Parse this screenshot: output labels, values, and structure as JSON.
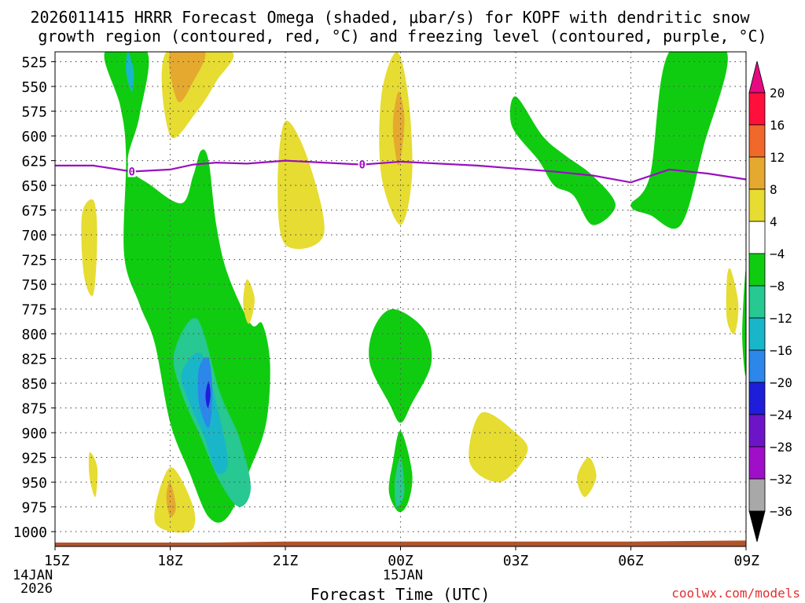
{
  "chart_data": {
    "type": "heatmap",
    "title_line1": "2026011415 HRRR Forecast Omega (shaded, μbar/s) for KOPF with dendritic snow",
    "title_line2": "growth region (contoured, red, °C) and freezing level (contoured, purple, °C)",
    "xlabel": "Forecast Time (UTC)",
    "credit": "coolwx.com/models",
    "x_range_hours": [
      0,
      18
    ],
    "x_ticks": [
      {
        "h": 0,
        "label": "15Z",
        "sub1": "14JAN",
        "sub2": "2026"
      },
      {
        "h": 3,
        "label": "18Z",
        "sub1": "",
        "sub2": ""
      },
      {
        "h": 6,
        "label": "21Z",
        "sub1": "",
        "sub2": ""
      },
      {
        "h": 9,
        "label": "00Z",
        "sub1": "15JAN",
        "sub2": ""
      },
      {
        "h": 12,
        "label": "03Z",
        "sub1": "",
        "sub2": ""
      },
      {
        "h": 15,
        "label": "06Z",
        "sub1": "",
        "sub2": ""
      },
      {
        "h": 18,
        "label": "09Z",
        "sub1": "",
        "sub2": ""
      }
    ],
    "y_axis": "pressure_hPa",
    "y_range": [
      515,
      1015
    ],
    "y_ticks": [
      525,
      550,
      575,
      600,
      625,
      650,
      675,
      700,
      725,
      750,
      775,
      800,
      825,
      850,
      875,
      900,
      925,
      950,
      975,
      1000
    ],
    "colorbar": {
      "labels": [
        "20",
        "16",
        "12",
        "8",
        "4",
        "−4",
        "−8",
        "−12",
        "−16",
        "−20",
        "−24",
        "−28",
        "−32",
        "−36"
      ],
      "bins": [
        {
          "range": [
            16,
            20
          ],
          "color": "#ff0f3c"
        },
        {
          "range": [
            12,
            16
          ],
          "color": "#f0682a"
        },
        {
          "range": [
            8,
            12
          ],
          "color": "#e6a92f"
        },
        {
          "range": [
            4,
            8
          ],
          "color": "#e6dc32"
        },
        {
          "range": [
            -4,
            4
          ],
          "color": "#ffffff"
        },
        {
          "range": [
            -8,
            -4
          ],
          "color": "#10cc10"
        },
        {
          "range": [
            -12,
            -8
          ],
          "color": "#27c891"
        },
        {
          "range": [
            -16,
            -12
          ],
          "color": "#18b6c8"
        },
        {
          "range": [
            -20,
            -16
          ],
          "color": "#2d86ea"
        },
        {
          "range": [
            -24,
            -20
          ],
          "color": "#1e1eda"
        },
        {
          "range": [
            -28,
            -24
          ],
          "color": "#6e14c8"
        },
        {
          "range": [
            -32,
            -28
          ],
          "color": "#a00fc8"
        },
        {
          "range": [
            -36,
            -32
          ],
          "color": "#a8a8a8"
        }
      ],
      "over_color": "#e60a82",
      "under_color": "#000000"
    },
    "freezing_level": {
      "color": "#9a10c0",
      "label": "0",
      "label_points": [
        [
          2.0,
          636
        ],
        [
          8.0,
          629
        ]
      ],
      "points": [
        [
          0,
          630
        ],
        [
          1.0,
          630
        ],
        [
          2.0,
          636
        ],
        [
          3.0,
          634
        ],
        [
          3.6,
          629
        ],
        [
          4.2,
          627
        ],
        [
          5.0,
          628
        ],
        [
          6.0,
          625
        ],
        [
          7.0,
          627
        ],
        [
          8.0,
          629
        ],
        [
          9.0,
          626
        ],
        [
          10.0,
          628
        ],
        [
          11.0,
          630
        ],
        [
          12.0,
          633
        ],
        [
          13.0,
          636
        ],
        [
          14.0,
          640
        ],
        [
          15.0,
          647
        ],
        [
          16.0,
          634
        ],
        [
          17.0,
          638
        ],
        [
          18.0,
          644
        ]
      ]
    },
    "shaded_regions": [
      {
        "bin": "-8..-4",
        "points": [
          [
            1.3,
            515
          ],
          [
            2.4,
            515
          ],
          [
            2.2,
            580
          ],
          [
            1.9,
            628
          ],
          [
            2.5,
            650
          ],
          [
            3.3,
            668
          ],
          [
            3.6,
            640
          ],
          [
            3.8,
            615
          ],
          [
            4.0,
            625
          ],
          [
            4.2,
            690
          ],
          [
            4.5,
            740
          ],
          [
            5.1,
            790
          ],
          [
            5.4,
            790
          ],
          [
            5.6,
            830
          ],
          [
            5.5,
            890
          ],
          [
            5.1,
            935
          ],
          [
            4.5,
            985
          ],
          [
            4.0,
            985
          ],
          [
            3.5,
            940
          ],
          [
            3.0,
            890
          ],
          [
            2.6,
            810
          ],
          [
            2.2,
            770
          ],
          [
            1.8,
            720
          ],
          [
            1.85,
            620
          ],
          [
            1.7,
            570
          ]
        ]
      },
      {
        "bin": "4..8",
        "points": [
          [
            2.9,
            515
          ],
          [
            4.6,
            515
          ],
          [
            4.2,
            545
          ],
          [
            3.7,
            575
          ],
          [
            3.0,
            600
          ]
        ]
      },
      {
        "bin": "8..12",
        "points": [
          [
            3.0,
            515
          ],
          [
            3.9,
            515
          ],
          [
            3.6,
            545
          ],
          [
            3.2,
            565
          ]
        ]
      },
      {
        "bin": "4..8",
        "points": [
          [
            6.0,
            585
          ],
          [
            6.6,
            625
          ],
          [
            7.0,
            700
          ],
          [
            6.0,
            710
          ],
          [
            5.8,
            650
          ]
        ]
      },
      {
        "bin": "4..8",
        "points": [
          [
            1.0,
            665
          ],
          [
            1.1,
            700
          ],
          [
            1.0,
            760
          ],
          [
            0.75,
            740
          ],
          [
            0.7,
            680
          ]
        ]
      },
      {
        "bin": "4..8",
        "points": [
          [
            8.9,
            515
          ],
          [
            9.2,
            560
          ],
          [
            9.3,
            640
          ],
          [
            9.0,
            690
          ],
          [
            8.5,
            640
          ],
          [
            8.5,
            560
          ]
        ]
      },
      {
        "bin": "8..12",
        "points": [
          [
            8.95,
            555
          ],
          [
            9.1,
            585
          ],
          [
            8.95,
            630
          ],
          [
            8.8,
            590
          ]
        ]
      },
      {
        "bin": "4..8",
        "points": [
          [
            5.0,
            745
          ],
          [
            5.2,
            765
          ],
          [
            5.05,
            790
          ],
          [
            4.9,
            770
          ]
        ]
      },
      {
        "bin": "-8..-4",
        "points": [
          [
            12.0,
            560
          ],
          [
            12.7,
            600
          ],
          [
            13.3,
            620
          ],
          [
            14.0,
            640
          ],
          [
            14.6,
            670
          ],
          [
            14.0,
            690
          ],
          [
            13.5,
            660
          ],
          [
            13.0,
            650
          ],
          [
            12.6,
            625
          ],
          [
            11.9,
            590
          ]
        ]
      },
      {
        "bin": "-8..-4",
        "points": [
          [
            16.0,
            515
          ],
          [
            17.5,
            515
          ],
          [
            16.9,
            610
          ],
          [
            16.3,
            690
          ],
          [
            15.5,
            680
          ],
          [
            15.0,
            670
          ],
          [
            15.5,
            640
          ]
        ]
      },
      {
        "bin": "-8..-4",
        "points": [
          [
            8.8,
            775
          ],
          [
            9.6,
            795
          ],
          [
            9.8,
            830
          ],
          [
            9.3,
            870
          ],
          [
            9.0,
            890
          ],
          [
            8.7,
            870
          ],
          [
            8.2,
            830
          ],
          [
            8.3,
            795
          ]
        ]
      },
      {
        "bin": "-8..-4",
        "points": [
          [
            9.0,
            898
          ],
          [
            9.3,
            940
          ],
          [
            9.2,
            970
          ],
          [
            8.95,
            980
          ],
          [
            8.7,
            960
          ],
          [
            8.8,
            930
          ]
        ]
      },
      {
        "bin": "-12..-8",
        "points": [
          [
            9.0,
            925
          ],
          [
            9.1,
            960
          ],
          [
            8.9,
            975
          ],
          [
            8.85,
            950
          ]
        ]
      },
      {
        "bin": "4..8",
        "points": [
          [
            11.1,
            880
          ],
          [
            12.0,
            900
          ],
          [
            12.3,
            920
          ],
          [
            11.6,
            950
          ],
          [
            10.8,
            930
          ]
        ]
      },
      {
        "bin": "4..8",
        "points": [
          [
            13.9,
            925
          ],
          [
            14.1,
            945
          ],
          [
            13.8,
            965
          ],
          [
            13.6,
            945
          ]
        ]
      },
      {
        "bin": "4..8",
        "points": [
          [
            17.6,
            735
          ],
          [
            17.8,
            770
          ],
          [
            17.7,
            800
          ],
          [
            17.5,
            785
          ],
          [
            17.5,
            745
          ]
        ]
      },
      {
        "bin": "-8..-4",
        "points": [
          [
            18.0,
            735
          ],
          [
            18.0,
            840
          ],
          [
            17.9,
            800
          ]
        ]
      },
      {
        "bin": "4..8",
        "points": [
          [
            0.9,
            920
          ],
          [
            1.1,
            935
          ],
          [
            1.05,
            965
          ],
          [
            0.9,
            945
          ]
        ]
      },
      {
        "bin": "4..8",
        "points": [
          [
            3.0,
            935
          ],
          [
            3.6,
            975
          ],
          [
            3.5,
            1000
          ],
          [
            2.6,
            990
          ]
        ]
      },
      {
        "bin": "8..12",
        "points": [
          [
            3.0,
            950
          ],
          [
            3.15,
            975
          ],
          [
            3.0,
            985
          ],
          [
            2.9,
            965
          ]
        ]
      },
      {
        "bin": "-12..-8",
        "points": [
          [
            3.7,
            785
          ],
          [
            4.3,
            860
          ],
          [
            4.8,
            905
          ],
          [
            5.1,
            955
          ],
          [
            4.8,
            975
          ],
          [
            4.3,
            950
          ],
          [
            3.8,
            905
          ],
          [
            3.3,
            860
          ],
          [
            3.1,
            820
          ]
        ]
      },
      {
        "bin": "-16..-12",
        "points": [
          [
            3.8,
            820
          ],
          [
            4.2,
            870
          ],
          [
            4.5,
            930
          ],
          [
            4.2,
            940
          ],
          [
            3.9,
            905
          ],
          [
            3.5,
            870
          ],
          [
            3.3,
            840
          ]
        ]
      },
      {
        "bin": "-20..-16",
        "points": [
          [
            4.0,
            825
          ],
          [
            4.1,
            860
          ],
          [
            4.0,
            895
          ],
          [
            3.75,
            870
          ],
          [
            3.75,
            835
          ]
        ]
      },
      {
        "bin": "-24..-20",
        "points": [
          [
            4.0,
            848
          ],
          [
            4.05,
            862
          ],
          [
            3.98,
            875
          ],
          [
            3.92,
            862
          ]
        ]
      },
      {
        "bin": "-16..-12",
        "points": [
          [
            1.9,
            515
          ],
          [
            2.05,
            535
          ],
          [
            2.0,
            555
          ],
          [
            1.85,
            535
          ]
        ]
      }
    ],
    "terrain_surface": {
      "color": "#b2532a",
      "points": [
        [
          0,
          1011
        ],
        [
          4.0,
          1011
        ],
        [
          6.0,
          1010
        ],
        [
          9.0,
          1010
        ],
        [
          12.0,
          1010
        ],
        [
          15.0,
          1010
        ],
        [
          18.0,
          1009
        ]
      ]
    }
  }
}
